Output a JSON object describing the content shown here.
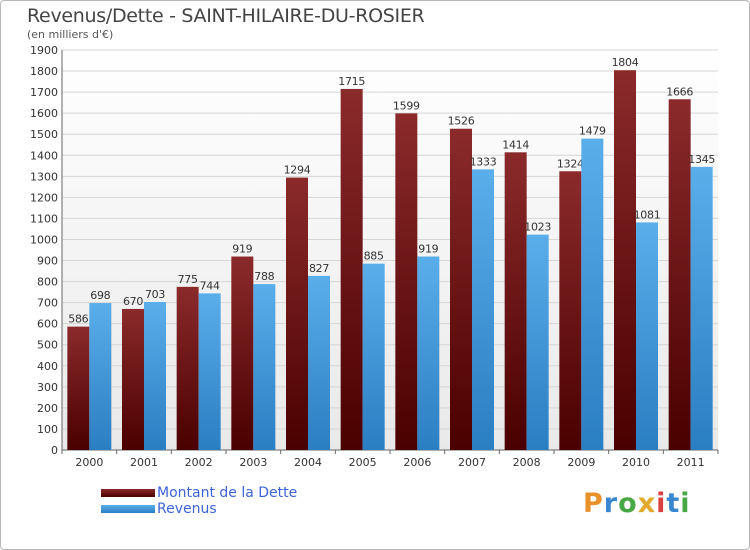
{
  "header": {
    "title": "Revenus/Dette - SAINT-HILAIRE-DU-ROSIER",
    "subtitle": "(en milliers d'€)"
  },
  "legend": {
    "items": [
      {
        "label": "Montant de la Dette",
        "color": "#6b0f10"
      },
      {
        "label": "Revenus",
        "color": "#3d93d8"
      }
    ]
  },
  "logo": {
    "text": "Proxiti",
    "letters": [
      {
        "ch": "P",
        "color": "#e8912b"
      },
      {
        "ch": "r",
        "color": "#3a86d0"
      },
      {
        "ch": "o",
        "color": "#48a845"
      },
      {
        "ch": "x",
        "color": "#e3a92a"
      },
      {
        "ch": "i",
        "color": "#d94040"
      },
      {
        "ch": "t",
        "color": "#3a86d0"
      },
      {
        "ch": "i",
        "color": "#48a845"
      }
    ]
  },
  "chart_data": {
    "type": "bar",
    "title": "Revenus/Dette - SAINT-HILAIRE-DU-ROSIER",
    "ylabel": "(en milliers d'€)",
    "ylim": [
      0,
      1900
    ],
    "ytick_step": 100,
    "grid": true,
    "categories": [
      "2000",
      "2001",
      "2002",
      "2003",
      "2004",
      "2005",
      "2006",
      "2007",
      "2008",
      "2009",
      "2010",
      "2011"
    ],
    "series": [
      {
        "name": "Montant de la Dette",
        "color_top": "#8b2a2b",
        "color_bottom": "#4a0000",
        "values": [
          586,
          670,
          775,
          919,
          1294,
          1715,
          1599,
          1526,
          1414,
          1324,
          1804,
          1666
        ]
      },
      {
        "name": "Revenus",
        "color_top": "#5aaeea",
        "color_bottom": "#2a7ec2",
        "values": [
          698,
          703,
          744,
          788,
          827,
          885,
          919,
          1333,
          1023,
          1479,
          1081,
          1345
        ]
      }
    ]
  }
}
